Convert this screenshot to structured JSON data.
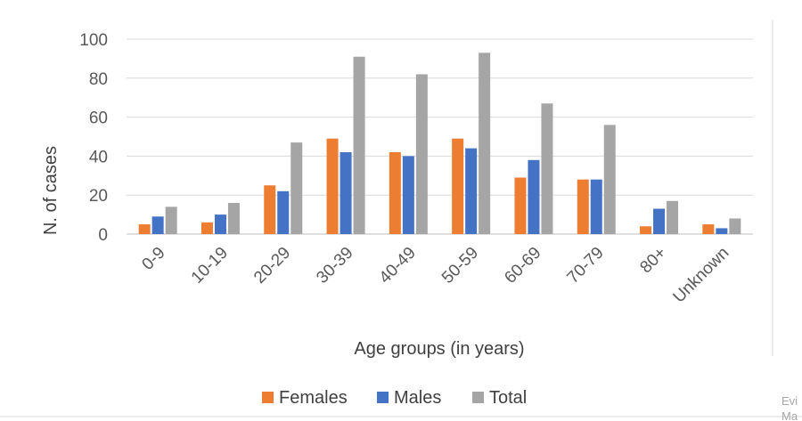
{
  "chart_data": {
    "type": "bar",
    "title": "",
    "xlabel": "Age groups (in years)",
    "ylabel": "N. of cases",
    "ylim": [
      0,
      100
    ],
    "yticks": [
      0,
      20,
      40,
      60,
      80,
      100
    ],
    "grid": true,
    "legend_position": "bottom",
    "categories": [
      "0-9",
      "10-19",
      "20-29",
      "30-39",
      "40-49",
      "50-59",
      "60-69",
      "70-79",
      "80+",
      "Unknown"
    ],
    "series": [
      {
        "name": "Females",
        "color": "#ed7d31",
        "values": [
          5,
          6,
          25,
          49,
          42,
          49,
          29,
          28,
          4,
          5
        ]
      },
      {
        "name": "Males",
        "color": "#4472c4",
        "values": [
          9,
          10,
          22,
          42,
          40,
          44,
          38,
          28,
          13,
          3
        ]
      },
      {
        "name": "Total",
        "color": "#a5a5a5",
        "values": [
          14,
          16,
          47,
          91,
          82,
          93,
          67,
          56,
          17,
          8
        ]
      }
    ]
  },
  "edge_text": [
    "Evi",
    "Ma"
  ]
}
